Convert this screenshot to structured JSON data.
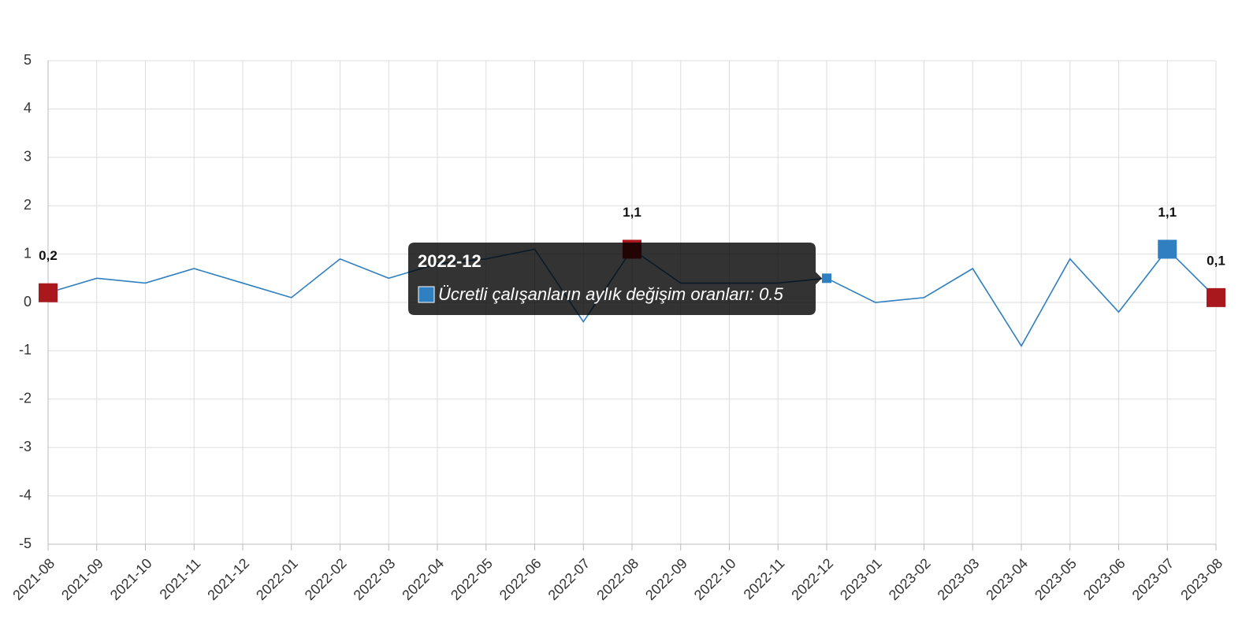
{
  "chart_data": {
    "type": "line",
    "categories": [
      "2021-08",
      "2021-09",
      "2021-10",
      "2021-11",
      "2021-12",
      "2022-01",
      "2022-02",
      "2022-03",
      "2022-04",
      "2022-05",
      "2022-06",
      "2022-07",
      "2022-08",
      "2022-09",
      "2022-10",
      "2022-11",
      "2022-12",
      "2023-01",
      "2023-02",
      "2023-03",
      "2023-04",
      "2023-05",
      "2023-06",
      "2023-07",
      "2023-08"
    ],
    "values": [
      0.2,
      0.5,
      0.4,
      0.7,
      0.4,
      0.1,
      0.9,
      0.5,
      0.8,
      0.9,
      1.1,
      -0.4,
      1.1,
      0.4,
      0.4,
      0.4,
      0.5,
      0.0,
      0.1,
      0.7,
      -0.9,
      0.9,
      -0.2,
      1.1,
      0.1
    ],
    "value_labels": [
      "0,2",
      null,
      null,
      null,
      null,
      null,
      null,
      null,
      null,
      null,
      null,
      null,
      "1,1",
      null,
      null,
      null,
      null,
      null,
      null,
      null,
      null,
      null,
      null,
      "1,1",
      "0,1"
    ],
    "marker_colors": [
      "#a8181c",
      null,
      null,
      null,
      null,
      null,
      null,
      null,
      null,
      null,
      null,
      null,
      "#a8181c",
      null,
      null,
      null,
      null,
      null,
      null,
      null,
      null,
      null,
      null,
      "#2f7fc1",
      "#a8181c"
    ],
    "color": "#2f7fc1",
    "ylim": [
      -5,
      5
    ],
    "yticks": [
      -5,
      -4,
      -3,
      -2,
      -1,
      0,
      1,
      2,
      3,
      4,
      5
    ],
    "grid": true,
    "tooltip": {
      "index": 16,
      "title": "2022-12",
      "label": "Ücretli çalışanların aylık değişim oranları: 0.5"
    }
  }
}
